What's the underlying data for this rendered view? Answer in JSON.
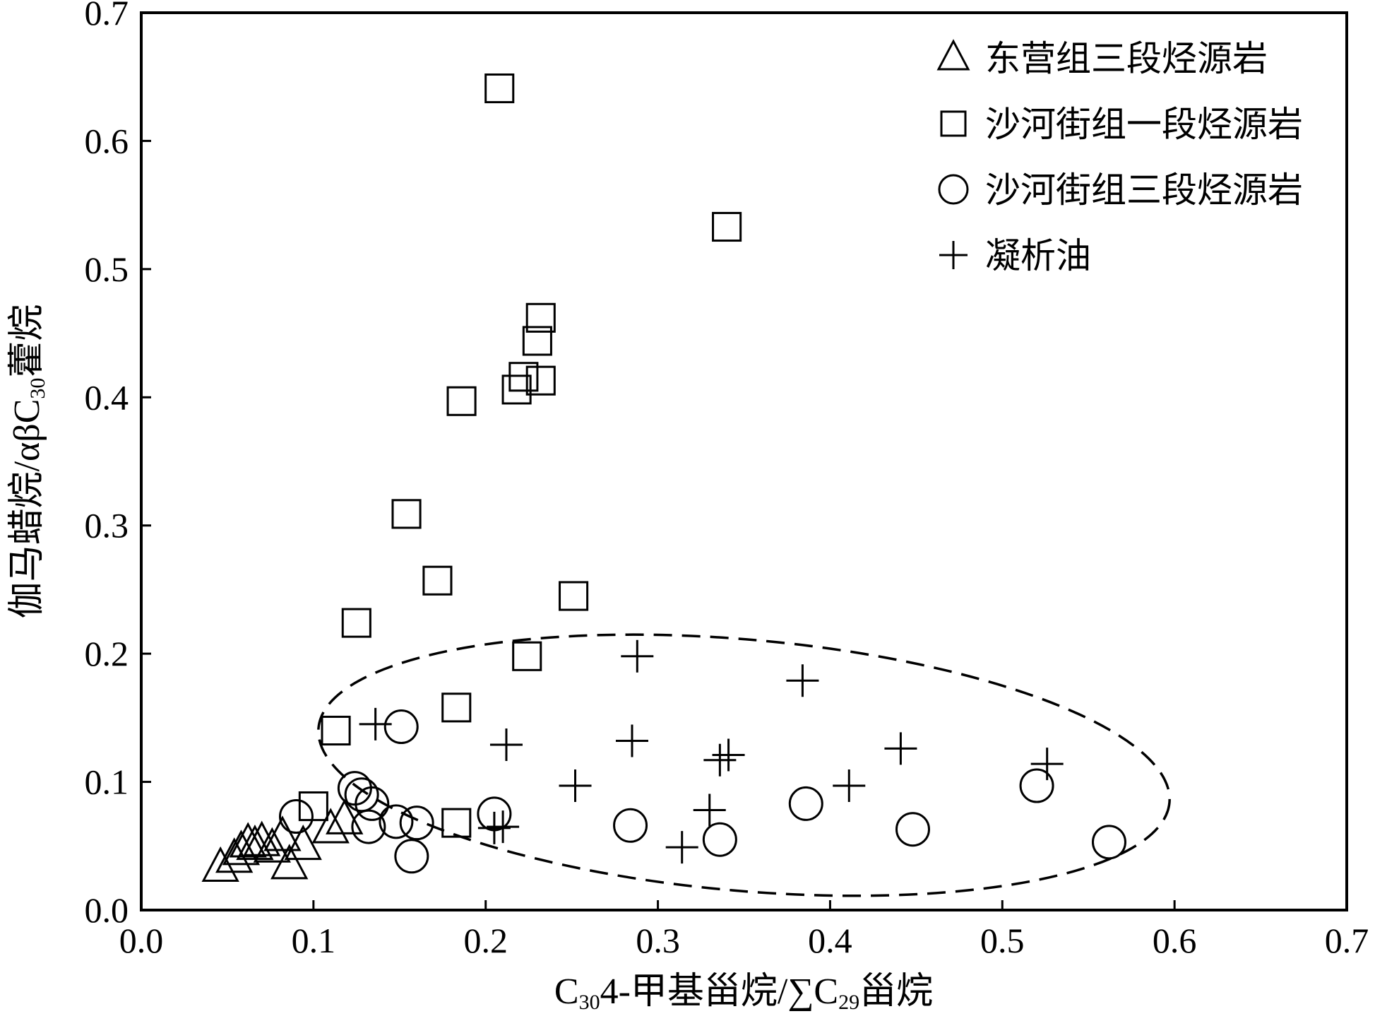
{
  "chart_data": {
    "type": "scatter",
    "xlim": [
      0.0,
      0.7
    ],
    "ylim": [
      0.0,
      0.7
    ],
    "x_ticks": [
      "0.0",
      "0.1",
      "0.2",
      "0.3",
      "0.4",
      "0.5",
      "0.6",
      "0.7"
    ],
    "y_ticks": [
      "0.0",
      "0.1",
      "0.2",
      "0.3",
      "0.4",
      "0.5",
      "0.6",
      "0.7"
    ],
    "xlabel": {
      "p1": "C",
      "sub1": "30",
      "p2": "4-甲基甾烷/∑C",
      "sub2": "29",
      "p3": "甾烷"
    },
    "ylabel": {
      "p1": "伽马蜡烷/αβC",
      "sub1": "30",
      "p2": "藿烷"
    },
    "grid": false,
    "legend_position": "top-right",
    "series": [
      {
        "name": "东营组三段烃源岩",
        "marker": "triangle",
        "points": [
          [
            0.046,
            0.033
          ],
          [
            0.054,
            0.04
          ],
          [
            0.058,
            0.046
          ],
          [
            0.062,
            0.052
          ],
          [
            0.066,
            0.05
          ],
          [
            0.07,
            0.053
          ],
          [
            0.076,
            0.048
          ],
          [
            0.082,
            0.057
          ],
          [
            0.086,
            0.035
          ],
          [
            0.094,
            0.05
          ],
          [
            0.11,
            0.063
          ],
          [
            0.118,
            0.07
          ]
        ]
      },
      {
        "name": "沙河街组一段烃源岩",
        "marker": "square",
        "points": [
          [
            0.208,
            0.641
          ],
          [
            0.34,
            0.533
          ],
          [
            0.232,
            0.462
          ],
          [
            0.23,
            0.444
          ],
          [
            0.186,
            0.397
          ],
          [
            0.222,
            0.416
          ],
          [
            0.218,
            0.406
          ],
          [
            0.232,
            0.413
          ],
          [
            0.154,
            0.309
          ],
          [
            0.172,
            0.257
          ],
          [
            0.251,
            0.245
          ],
          [
            0.125,
            0.224
          ],
          [
            0.224,
            0.198
          ],
          [
            0.183,
            0.158
          ],
          [
            0.113,
            0.14
          ],
          [
            0.1,
            0.081
          ],
          [
            0.183,
            0.068
          ]
        ]
      },
      {
        "name": "沙河街组三段烃源岩",
        "marker": "circle",
        "points": [
          [
            0.151,
            0.143
          ],
          [
            0.124,
            0.095
          ],
          [
            0.128,
            0.09
          ],
          [
            0.134,
            0.083
          ],
          [
            0.09,
            0.073
          ],
          [
            0.132,
            0.065
          ],
          [
            0.148,
            0.069
          ],
          [
            0.16,
            0.068
          ],
          [
            0.157,
            0.042
          ],
          [
            0.205,
            0.075
          ],
          [
            0.284,
            0.066
          ],
          [
            0.336,
            0.055
          ],
          [
            0.386,
            0.083
          ],
          [
            0.448,
            0.063
          ],
          [
            0.52,
            0.097
          ],
          [
            0.562,
            0.053
          ]
        ]
      },
      {
        "name": "凝析油",
        "marker": "plus",
        "points": [
          [
            0.136,
            0.145
          ],
          [
            0.212,
            0.129
          ],
          [
            0.285,
            0.132
          ],
          [
            0.252,
            0.097
          ],
          [
            0.288,
            0.198
          ],
          [
            0.384,
            0.179
          ],
          [
            0.336,
            0.117
          ],
          [
            0.341,
            0.121
          ],
          [
            0.441,
            0.126
          ],
          [
            0.411,
            0.097
          ],
          [
            0.526,
            0.114
          ],
          [
            0.33,
            0.078
          ],
          [
            0.314,
            0.049
          ],
          [
            0.205,
            0.064
          ],
          [
            0.21,
            0.065
          ]
        ]
      }
    ],
    "annotations": [
      {
        "type": "dashed-ellipse",
        "center": [
          0.35,
          0.113
        ],
        "semi_axes": [
          0.248,
          0.098
        ],
        "rotation_deg": 5
      }
    ]
  }
}
